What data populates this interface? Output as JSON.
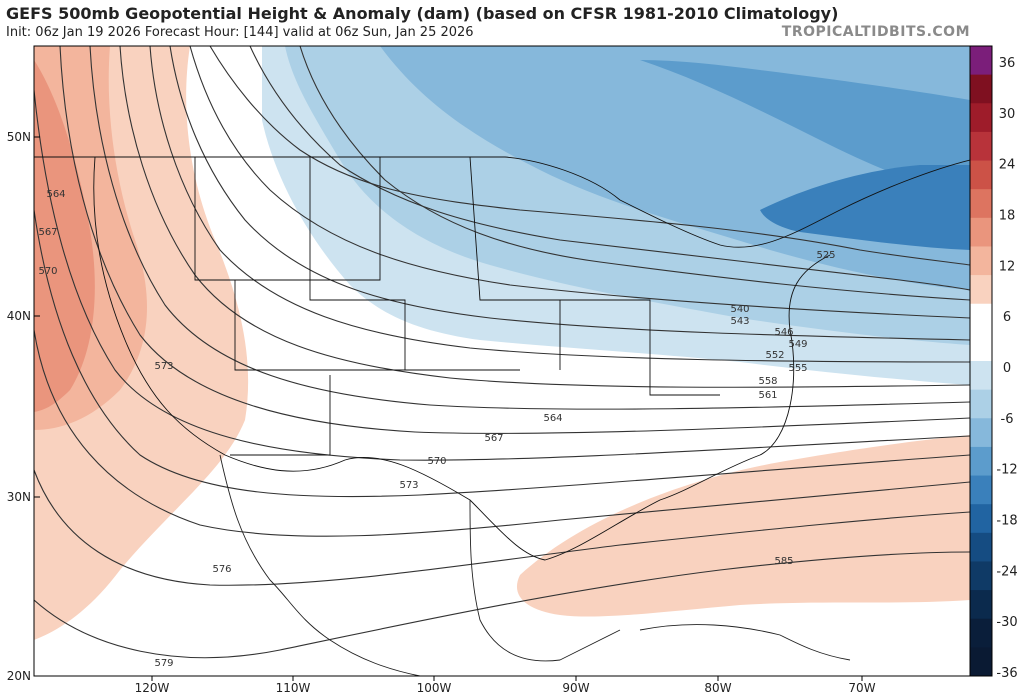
{
  "header": {
    "title": "GEFS 500mb Geopotential Height & Anomaly (dam) (based on CFSR 1981-2010 Climatology)",
    "subtitle": "Init: 06z Jan 19 2026   Forecast Hour: [144]   valid at 06z Sun, Jan 25 2026",
    "brand": "TROPICALTIDBITS.COM"
  },
  "map": {
    "lat_labels": [
      "50N",
      "40N",
      "30N",
      "20N"
    ],
    "lon_labels": [
      "120W",
      "110W",
      "100W",
      "90W",
      "80W",
      "70W"
    ],
    "contour_labels": [
      "564",
      "567",
      "570",
      "573",
      "525",
      "540",
      "543",
      "546",
      "549",
      "552",
      "555",
      "558",
      "561",
      "564",
      "567",
      "570",
      "573",
      "576",
      "579",
      "585"
    ]
  },
  "colorbar": {
    "ticks": [
      "36",
      "30",
      "24",
      "18",
      "12",
      "6",
      "0",
      "-6",
      "-12",
      "-18",
      "-24",
      "-30",
      "-36"
    ],
    "colors": [
      "#7b1e7a",
      "#7f1020",
      "#9e1c2a",
      "#b8333a",
      "#cc5247",
      "#dd7460",
      "#ea957d",
      "#f3b59d",
      "#f9d2bf",
      "#ffffff",
      "#ffffff",
      "#cde3f0",
      "#acd0e6",
      "#86b8db",
      "#5c9ccc",
      "#3a80bb",
      "#2164a2",
      "#154c82",
      "#0f3a66",
      "#0b2a4d",
      "#0a1e3a",
      "#0a1a33"
    ]
  },
  "colors": {
    "warm_light": "#f9d2bf",
    "warm_mid": "#f3b59d",
    "warm_strong": "#ea957d",
    "cool_light": "#cde3f0",
    "cool_mid": "#acd0e6",
    "cool_strong": "#86b8db",
    "cool_deep": "#5c9ccc",
    "contour": "#333333"
  }
}
